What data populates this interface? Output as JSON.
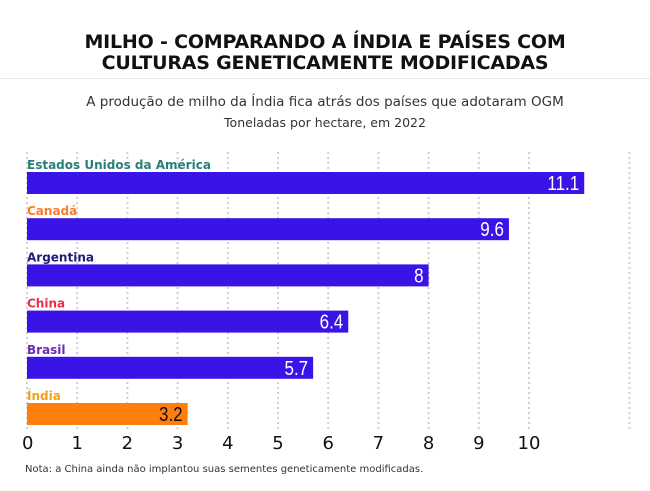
{
  "title_lines": [
    "MILHO - COMPARANDO A ÍNDIA E PAÍSES COM",
    "CULTURAS GENETICAMENTE MODIFICADAS"
  ],
  "subtitle": "A produção de milho da Índia fica atrás dos países que adotaram OGM",
  "unit_label": "Toneladas por hectare, em 2022",
  "note": "Nota: a China ainda não implantou suas sementes geneticamente modificadas.",
  "colors": {
    "bar": "#3a14e6",
    "highlight_bar": "#ff7f0e",
    "grid": "#cfcfcf",
    "axis_labels": "#111111"
  },
  "chart_data": {
    "type": "bar",
    "orientation": "horizontal",
    "title": "MILHO - COMPARANDO A ÍNDIA E PAÍSES COM CULTURAS GENETICAMENTE MODIFICADAS",
    "subtitle": "A produção de milho da Índia fica atrás dos países que adotaram OGM",
    "unit": "Toneladas por hectare, em 2022",
    "categories": [
      "Estados Unidos da América",
      "Canadá",
      "Argentina",
      "China",
      "Brasil",
      "Índia"
    ],
    "values": [
      11.1,
      9.6,
      8,
      6.4,
      5.7,
      3.2
    ],
    "value_labels": [
      "11.1",
      "9.6",
      "8",
      "6.4",
      "5.7",
      "3.2"
    ],
    "category_colors": [
      "#2a7f7a",
      "#ff7a2a",
      "#1e1e7a",
      "#e8304a",
      "#6a2ab8",
      "#f2a01e"
    ],
    "bar_colors": [
      "#3a14e6",
      "#3a14e6",
      "#3a14e6",
      "#3a14e6",
      "#3a14e6",
      "#ff7f0e"
    ],
    "x_ticks": [
      0,
      1,
      2,
      3,
      4,
      5,
      6,
      7,
      8,
      9,
      10
    ],
    "xlim": [
      0,
      12
    ],
    "grid": true
  }
}
